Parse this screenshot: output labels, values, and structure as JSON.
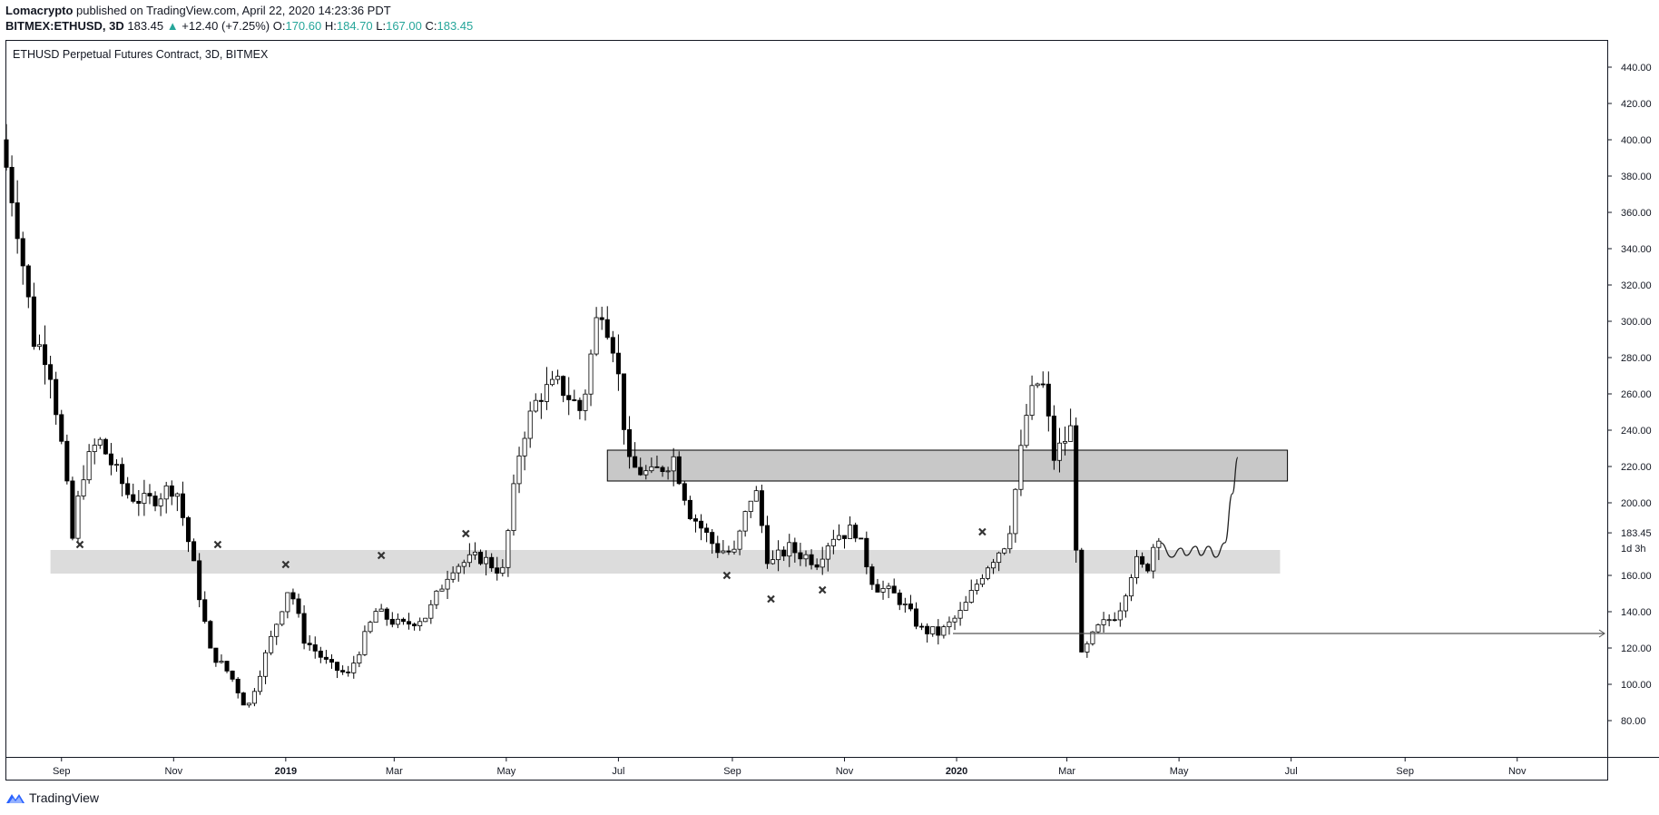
{
  "header": {
    "author": "Lomacrypto",
    "published_text": "published on TradingView.com, April 22, 2020 14:23:36 PDT",
    "symbol": "BITMEX:ETHUSD, 3D",
    "last": "183.45",
    "change": "+12.40 (+7.25%)",
    "open_label": "O:",
    "open": "170.60",
    "high_label": "H:",
    "high": "184.70",
    "low_label": "L:",
    "low": "167.00",
    "close_label": "C:",
    "close": "183.45"
  },
  "footer": {
    "brand": "TradingView",
    "logo_icon": "tradingview-logo-icon"
  },
  "colors": {
    "up": "#ffffff",
    "down": "#000000",
    "wick": "#000000",
    "accent": "#26a69a",
    "resistance_zone": "#c8c8c8",
    "support_zone": "#dcdcdc"
  },
  "chart_data": {
    "type": "candlestick",
    "title": "ETHUSD Perpetual Futures Contract, 3D, BITMEX",
    "ylim": [
      70,
      450
    ],
    "y_ticks": [
      "440.00",
      "420.00",
      "400.00",
      "380.00",
      "360.00",
      "340.00",
      "320.00",
      "300.00",
      "280.00",
      "260.00",
      "240.00",
      "220.00",
      "200.00",
      "160.00",
      "140.00",
      "120.00",
      "100.00",
      "80.00"
    ],
    "y_tick_values": [
      440,
      420,
      400,
      380,
      360,
      340,
      320,
      300,
      280,
      260,
      240,
      220,
      200,
      160,
      140,
      120,
      100,
      80
    ],
    "last_price_label": "183.45",
    "countdown_label": "1d 3h",
    "x_ticks": [
      {
        "label": "Sep",
        "date": "2018-09-01",
        "bold": false
      },
      {
        "label": "Nov",
        "date": "2018-11-01",
        "bold": false
      },
      {
        "label": "2019",
        "date": "2019-01-01",
        "bold": true
      },
      {
        "label": "Mar",
        "date": "2019-03-01",
        "bold": false
      },
      {
        "label": "May",
        "date": "2019-05-01",
        "bold": false
      },
      {
        "label": "Jul",
        "date": "2019-07-01",
        "bold": false
      },
      {
        "label": "Sep",
        "date": "2019-09-01",
        "bold": false
      },
      {
        "label": "Nov",
        "date": "2019-11-01",
        "bold": false
      },
      {
        "label": "2020",
        "date": "2020-01-01",
        "bold": true
      },
      {
        "label": "Mar",
        "date": "2020-03-01",
        "bold": false
      },
      {
        "label": "May",
        "date": "2020-05-01",
        "bold": false
      },
      {
        "label": "Jul",
        "date": "2020-07-01",
        "bold": false
      },
      {
        "label": "Sep",
        "date": "2020-09-01",
        "bold": false
      },
      {
        "label": "Nov",
        "date": "2020-11-01",
        "bold": false
      }
    ],
    "x_range": [
      "2018-08-02",
      "2020-12-20"
    ],
    "price_path": [
      [
        "2018-08-02",
        400
      ],
      [
        "2018-08-10",
        360
      ],
      [
        "2018-08-20",
        290
      ],
      [
        "2018-08-28",
        280
      ],
      [
        "2018-09-05",
        225
      ],
      [
        "2018-09-10",
        180
      ],
      [
        "2018-09-15",
        215
      ],
      [
        "2018-09-24",
        235
      ],
      [
        "2018-10-10",
        205
      ],
      [
        "2018-10-20",
        200
      ],
      [
        "2018-11-05",
        210
      ],
      [
        "2018-11-14",
        170
      ],
      [
        "2018-11-24",
        118
      ],
      [
        "2018-12-05",
        105
      ],
      [
        "2018-12-14",
        86
      ],
      [
        "2018-12-22",
        110
      ],
      [
        "2019-01-06",
        155
      ],
      [
        "2019-01-14",
        125
      ],
      [
        "2019-01-28",
        110
      ],
      [
        "2019-02-07",
        105
      ],
      [
        "2019-02-22",
        140
      ],
      [
        "2019-03-08",
        132
      ],
      [
        "2019-03-22",
        138
      ],
      [
        "2019-04-04",
        165
      ],
      [
        "2019-04-20",
        170
      ],
      [
        "2019-05-02",
        162
      ],
      [
        "2019-05-12",
        235
      ],
      [
        "2019-05-22",
        260
      ],
      [
        "2019-06-02",
        265
      ],
      [
        "2019-06-14",
        250
      ],
      [
        "2019-06-24",
        312
      ],
      [
        "2019-07-02",
        285
      ],
      [
        "2019-07-10",
        220
      ],
      [
        "2019-07-22",
        215
      ],
      [
        "2019-08-03",
        225
      ],
      [
        "2019-08-12",
        195
      ],
      [
        "2019-08-26",
        175
      ],
      [
        "2019-09-05",
        172
      ],
      [
        "2019-09-16",
        210
      ],
      [
        "2019-09-24",
        165
      ],
      [
        "2019-10-04",
        175
      ],
      [
        "2019-10-20",
        168
      ],
      [
        "2019-10-28",
        182
      ],
      [
        "2019-11-10",
        185
      ],
      [
        "2019-11-20",
        155
      ],
      [
        "2019-12-03",
        148
      ],
      [
        "2019-12-16",
        130
      ],
      [
        "2019-12-26",
        128
      ],
      [
        "2020-01-07",
        140
      ],
      [
        "2020-01-20",
        165
      ],
      [
        "2020-02-01",
        180
      ],
      [
        "2020-02-12",
        255
      ],
      [
        "2020-02-19",
        270
      ],
      [
        "2020-02-26",
        225
      ],
      [
        "2020-03-06",
        240
      ],
      [
        "2020-03-12",
        115
      ],
      [
        "2020-03-20",
        130
      ],
      [
        "2020-04-01",
        140
      ],
      [
        "2020-04-10",
        168
      ],
      [
        "2020-04-16",
        162
      ],
      [
        "2020-04-22",
        183.45
      ]
    ],
    "zones": [
      {
        "name": "resistance",
        "from": "2019-06-25",
        "to": "2020-06-29",
        "low": 212,
        "high": 229
      },
      {
        "name": "support",
        "from": "2018-08-26",
        "to": "2020-06-25",
        "low": 161,
        "high": 174
      }
    ],
    "horizontal_ray": {
      "from": "2019-12-30",
      "price": 128
    },
    "marks": [
      {
        "date": "2018-09-11",
        "price": 177
      },
      {
        "date": "2018-11-25",
        "price": 177
      },
      {
        "date": "2019-01-01",
        "price": 166
      },
      {
        "date": "2019-02-22",
        "price": 171
      },
      {
        "date": "2019-04-09",
        "price": 183
      },
      {
        "date": "2019-08-29",
        "price": 160
      },
      {
        "date": "2019-09-22",
        "price": 147
      },
      {
        "date": "2019-10-20",
        "price": 152
      },
      {
        "date": "2020-01-15",
        "price": 184
      }
    ],
    "projection": [
      [
        "2020-04-21",
        178
      ],
      [
        "2020-04-27",
        170
      ],
      [
        "2020-05-02",
        175
      ],
      [
        "2020-05-05",
        171
      ],
      [
        "2020-05-10",
        176
      ],
      [
        "2020-05-13",
        171
      ],
      [
        "2020-05-17",
        176
      ],
      [
        "2020-05-21",
        170
      ],
      [
        "2020-05-26",
        178
      ],
      [
        "2020-05-30",
        205
      ],
      [
        "2020-06-02",
        225
      ]
    ]
  }
}
